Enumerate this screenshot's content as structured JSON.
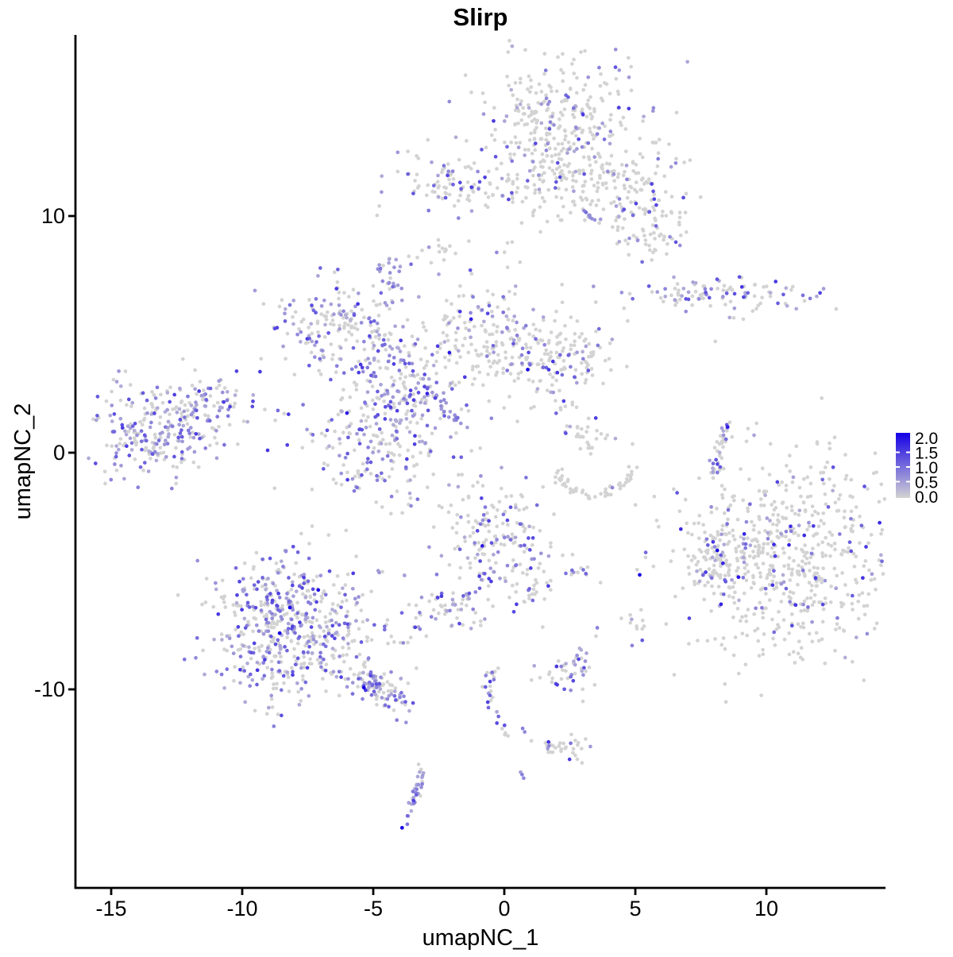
{
  "title": "Slirp",
  "axes": {
    "x_label": "umapNC_1",
    "y_label": "umapNC_2",
    "x_ticks": [
      {
        "v": -15,
        "label": "-15"
      },
      {
        "v": -10,
        "label": "-10"
      },
      {
        "v": -5,
        "label": "-5"
      },
      {
        "v": 0,
        "label": "0"
      },
      {
        "v": 5,
        "label": "5"
      },
      {
        "v": 10,
        "label": "10"
      }
    ],
    "y_ticks": [
      {
        "v": 10,
        "label": "10"
      },
      {
        "v": 0,
        "label": "0"
      },
      {
        "v": -10,
        "label": "-10"
      }
    ]
  },
  "legend": {
    "labels": [
      "2.0",
      "1.5",
      "1.0",
      "0.5",
      "0.0"
    ],
    "low_color": "#D3D3D3",
    "high_color": "#1500E6",
    "min": 0.0,
    "max": 2.0
  },
  "chart_data": {
    "type": "scatter",
    "title": "Slirp",
    "xlabel": "umapNC_1",
    "ylabel": "umapNC_2",
    "xlim": [
      -16.4,
      14.5
    ],
    "ylim": [
      -18.4,
      17.6
    ],
    "grid": false,
    "legend_position": "right",
    "colorbar": {
      "min": 0.0,
      "max": 2.0,
      "ticks": [
        0.0,
        0.5,
        1.0,
        1.5,
        2.0
      ],
      "low": "#D3D3D3",
      "high": "#1500E6"
    },
    "point_radius_px": 2.35,
    "n_points_estimate": 4000,
    "clusters": [
      {
        "name": "top-main",
        "type": "gauss",
        "cx": 2.1,
        "cy": 13.9,
        "sx": 1.75,
        "sy": 1.5,
        "n": 320,
        "frac": 0.17
      },
      {
        "name": "top-main-neck",
        "type": "gauss",
        "cx": 1.7,
        "cy": 11.5,
        "sx": 0.75,
        "sy": 1.0,
        "n": 70,
        "frac": 0.15
      },
      {
        "name": "top-arm-right",
        "type": "gauss",
        "cx": 4.6,
        "cy": 11.5,
        "sx": 1.35,
        "sy": 0.75,
        "n": 110,
        "frac": 0.2
      },
      {
        "name": "top-arm-blobs",
        "type": "gauss",
        "cx": 5.55,
        "cy": 9.5,
        "sx": 0.9,
        "sy": 0.75,
        "n": 80,
        "frac": 0.15
      },
      {
        "name": "top-streak",
        "type": "line",
        "x1": 3.0,
        "y1": 10.25,
        "x2": 3.55,
        "y2": 9.65,
        "n": 8,
        "frac": 0.9,
        "jitter": 0.08,
        "vmin": 0.6,
        "vmax": 1.0
      },
      {
        "name": "topleft-cluster",
        "type": "gauss",
        "cx": -2.1,
        "cy": 11.4,
        "sx": 1.15,
        "sy": 0.6,
        "n": 85,
        "frac": 0.25
      },
      {
        "name": "topleft-trail",
        "type": "line",
        "x1": -1.05,
        "y1": 11.05,
        "x2": 0.45,
        "y2": 10.85,
        "n": 14,
        "frac": 0.3,
        "jitter": 0.12
      },
      {
        "name": "small-blob-upper",
        "type": "gauss",
        "cx": -2.8,
        "cy": 8.55,
        "sx": 0.38,
        "sy": 0.27,
        "n": 15,
        "frac": 0.1
      },
      {
        "name": "purple-clump",
        "type": "gauss",
        "cx": -4.45,
        "cy": 7.3,
        "sx": 0.33,
        "sy": 0.4,
        "n": 26,
        "frac": 0.85,
        "vmin": 0.4,
        "vmax": 1.0
      },
      {
        "name": "midleft-cluster",
        "type": "gauss",
        "cx": -6.5,
        "cy": 5.45,
        "sx": 1.35,
        "sy": 0.95,
        "n": 160,
        "frac": 0.45
      },
      {
        "name": "center-stem",
        "type": "gauss",
        "cx": -4.4,
        "cy": 3.95,
        "sx": 0.9,
        "sy": 0.8,
        "n": 90,
        "frac": 0.45
      },
      {
        "name": "center-lower-lobe",
        "type": "gauss",
        "cx": -4.95,
        "cy": 0.45,
        "sx": 1.65,
        "sy": 1.35,
        "n": 210,
        "frac": 0.45
      },
      {
        "name": "center-core",
        "type": "gauss",
        "cx": -3.85,
        "cy": 1.9,
        "sx": 0.75,
        "sy": 0.85,
        "n": 80,
        "frac": 0.6
      },
      {
        "name": "center-streak",
        "type": "line",
        "x1": -3.25,
        "y1": 3.1,
        "x2": -1.3,
        "y2": 0.75,
        "n": 26,
        "frac": 0.85,
        "jitter": 0.08,
        "vmin": 0.5,
        "vmax": 1.1
      },
      {
        "name": "center-funnel",
        "type": "gauss",
        "cx": -0.65,
        "cy": 4.75,
        "sx": 1.05,
        "sy": 1.45,
        "n": 150,
        "frac": 0.33
      },
      {
        "name": "center-sparse",
        "type": "gauss",
        "cx": -2.3,
        "cy": 4.7,
        "sx": 0.6,
        "sy": 0.9,
        "n": 25,
        "frac": 0.3
      },
      {
        "name": "centerright-cluster",
        "type": "gauss",
        "cx": 2.0,
        "cy": 4.1,
        "sx": 1.15,
        "sy": 0.87,
        "n": 160,
        "frac": 0.17
      },
      {
        "name": "centerright-sub",
        "type": "gauss",
        "cx": 3.1,
        "cy": 0.6,
        "sx": 0.45,
        "sy": 0.4,
        "n": 28,
        "frac": 0.08
      },
      {
        "name": "centerright-trail",
        "type": "line",
        "x1": 2.0,
        "y1": 2.2,
        "x2": 2.9,
        "y2": 1.1,
        "n": 6,
        "frac": 0.1,
        "jitter": 0.2
      },
      {
        "name": "crescent",
        "type": "arc",
        "cx": 3.4,
        "cy": -0.5,
        "rx": 1.45,
        "ry": 1.3,
        "a1": 185,
        "a2": 355,
        "n": 55,
        "frac": 0.05,
        "jitter": 0.12
      },
      {
        "name": "farleft-main",
        "type": "gauss",
        "cx": -13.55,
        "cy": 0.75,
        "sx": 1.15,
        "sy": 1.0,
        "n": 190,
        "frac": 0.6,
        "vmax": 1.3
      },
      {
        "name": "farleft-upper",
        "type": "gauss",
        "cx": -11.9,
        "cy": 1.8,
        "sx": 1.2,
        "sy": 0.8,
        "n": 110,
        "frac": 0.35
      },
      {
        "name": "farleft-ext",
        "type": "line",
        "x1": -11.05,
        "y1": 1.7,
        "x2": -10.45,
        "y2": 2.2,
        "n": 10,
        "frac": 0.4,
        "jitter": 0.25
      },
      {
        "name": "right-vertical",
        "type": "line",
        "x1": 8.5,
        "y1": 1.2,
        "x2": 8.0,
        "y2": -0.95,
        "n": 38,
        "frac": 0.4,
        "jitter": 0.14
      },
      {
        "name": "right-horizontal",
        "type": "gauss",
        "cx": 8.25,
        "cy": 6.7,
        "sx": 1.7,
        "sy": 0.37,
        "n": 105,
        "frac": 0.45
      },
      {
        "name": "right-horizontal-below",
        "type": "gauss",
        "cx": 8.9,
        "cy": 5.75,
        "sx": 0.18,
        "sy": 0.12,
        "n": 3,
        "frac": 0.4
      },
      {
        "name": "bigright-main",
        "type": "gauss",
        "cx": 10.6,
        "cy": -4.45,
        "sx": 2.35,
        "sy": 2.2,
        "n": 680,
        "frac": 0.13,
        "vmax": 1.7
      },
      {
        "name": "bigright-appendage",
        "type": "gauss",
        "cx": 8.1,
        "cy": -4.75,
        "sx": 0.5,
        "sy": 0.85,
        "n": 55,
        "frac": 0.3
      },
      {
        "name": "centerbottom-cluster",
        "type": "gauss",
        "cx": -0.3,
        "cy": -3.7,
        "sx": 1.15,
        "sy": 1.1,
        "n": 170,
        "frac": 0.35
      },
      {
        "name": "centerbottom-tail",
        "type": "gauss",
        "cx": 1.0,
        "cy": -5.65,
        "sx": 0.4,
        "sy": 0.6,
        "n": 30,
        "frac": 0.35
      },
      {
        "name": "centerbottom-trail",
        "type": "line",
        "x1": -1.05,
        "y1": -5.75,
        "x2": -1.9,
        "y2": -6.45,
        "n": 10,
        "frac": 0.5,
        "jitter": 0.1
      },
      {
        "name": "small-blob-mid",
        "type": "gauss",
        "cx": -2.3,
        "cy": -6.8,
        "sx": 0.65,
        "sy": 0.45,
        "n": 48,
        "frac": 0.5
      },
      {
        "name": "bottomleft-a",
        "type": "gauss",
        "cx": -8.6,
        "cy": -6.3,
        "sx": 1.3,
        "sy": 1.15,
        "n": 210,
        "frac": 0.5
      },
      {
        "name": "bottomleft-b",
        "type": "gauss",
        "cx": -8.65,
        "cy": -8.4,
        "sx": 1.25,
        "sy": 1.15,
        "n": 190,
        "frac": 0.5
      },
      {
        "name": "bottomleft-c",
        "type": "gauss",
        "cx": -6.5,
        "cy": -7.8,
        "sx": 1.45,
        "sy": 1.3,
        "n": 180,
        "frac": 0.45
      },
      {
        "name": "bottomleft-tail",
        "type": "line",
        "x1": -5.65,
        "y1": -9.45,
        "x2": -3.85,
        "y2": -10.45,
        "n": 85,
        "frac": 0.5,
        "jitter": 0.38
      },
      {
        "name": "isolated-pair",
        "type": "points",
        "pts": [
          [
            -4.1,
            -11.3,
            0.8
          ],
          [
            -3.75,
            -11.4,
            0.6
          ]
        ]
      },
      {
        "name": "chain-upper",
        "type": "line",
        "x1": -0.3,
        "y1": -9.0,
        "x2": -0.7,
        "y2": -10.15,
        "n": 14,
        "frac": 0.5,
        "jitter": 0.12
      },
      {
        "name": "chain-lower",
        "type": "line",
        "x1": -0.7,
        "y1": -10.15,
        "x2": 0.15,
        "y2": -11.95,
        "n": 14,
        "frac": 0.5,
        "jitter": 0.12
      },
      {
        "name": "chain-pair",
        "type": "points",
        "pts": [
          [
            0.7,
            -11.65,
            0.8
          ],
          [
            0.78,
            -11.8,
            0.7
          ]
        ]
      },
      {
        "name": "bottom-small-a",
        "type": "gauss",
        "cx": 2.4,
        "cy": -9.3,
        "sx": 0.67,
        "sy": 0.47,
        "n": 45,
        "frac": 0.35
      },
      {
        "name": "bottom-small-b",
        "type": "gauss",
        "cx": 2.15,
        "cy": -12.4,
        "sx": 0.55,
        "sy": 0.3,
        "n": 28,
        "frac": 0.3
      },
      {
        "name": "bottom-small-b-tail",
        "type": "line",
        "x1": 1.6,
        "y1": -12.5,
        "x2": 1.95,
        "y2": -12.4,
        "n": 5,
        "frac": 0.1,
        "jitter": 0.08
      },
      {
        "name": "purple-streak-small",
        "type": "points",
        "pts": [
          [
            0.68,
            -13.6,
            0.8
          ],
          [
            0.74,
            -13.75,
            0.7
          ],
          [
            0.62,
            -13.5,
            0.5
          ]
        ]
      },
      {
        "name": "bottom-vertical",
        "type": "line",
        "x1": -3.2,
        "y1": -13.4,
        "x2": -3.55,
        "y2": -15.15,
        "n": 34,
        "frac": 0.75,
        "jitter": 0.18,
        "vmin": 0.35,
        "vmax": 0.9
      },
      {
        "name": "tiny-blue-blob",
        "type": "points",
        "pts": [
          [
            -3.9,
            -15.85,
            2.0
          ],
          [
            -3.7,
            -15.7,
            0.9
          ]
        ]
      },
      {
        "name": "scatter-singles",
        "type": "points",
        "pts": [
          [
            2.35,
            -5.1,
            0.9
          ],
          [
            3.55,
            -7.4,
            0.8
          ],
          [
            3.5,
            -7.75,
            0
          ],
          [
            8.05,
            4.7,
            0
          ],
          [
            0.3,
            8.9,
            0
          ],
          [
            0.6,
            8.05,
            0
          ],
          [
            2.2,
            7.1,
            0
          ],
          [
            -0.9,
            -7.3,
            0
          ]
        ]
      },
      {
        "name": "pair-cluster-mid",
        "type": "gauss",
        "cx": 2.95,
        "cy": -5.0,
        "sx": 0.3,
        "sy": 0.15,
        "n": 10,
        "frac": 0.5
      },
      {
        "name": "blob-right-small",
        "type": "gauss",
        "cx": 5.0,
        "cy": -7.3,
        "sx": 0.27,
        "sy": 0.33,
        "n": 9,
        "frac": 0.25
      }
    ]
  }
}
